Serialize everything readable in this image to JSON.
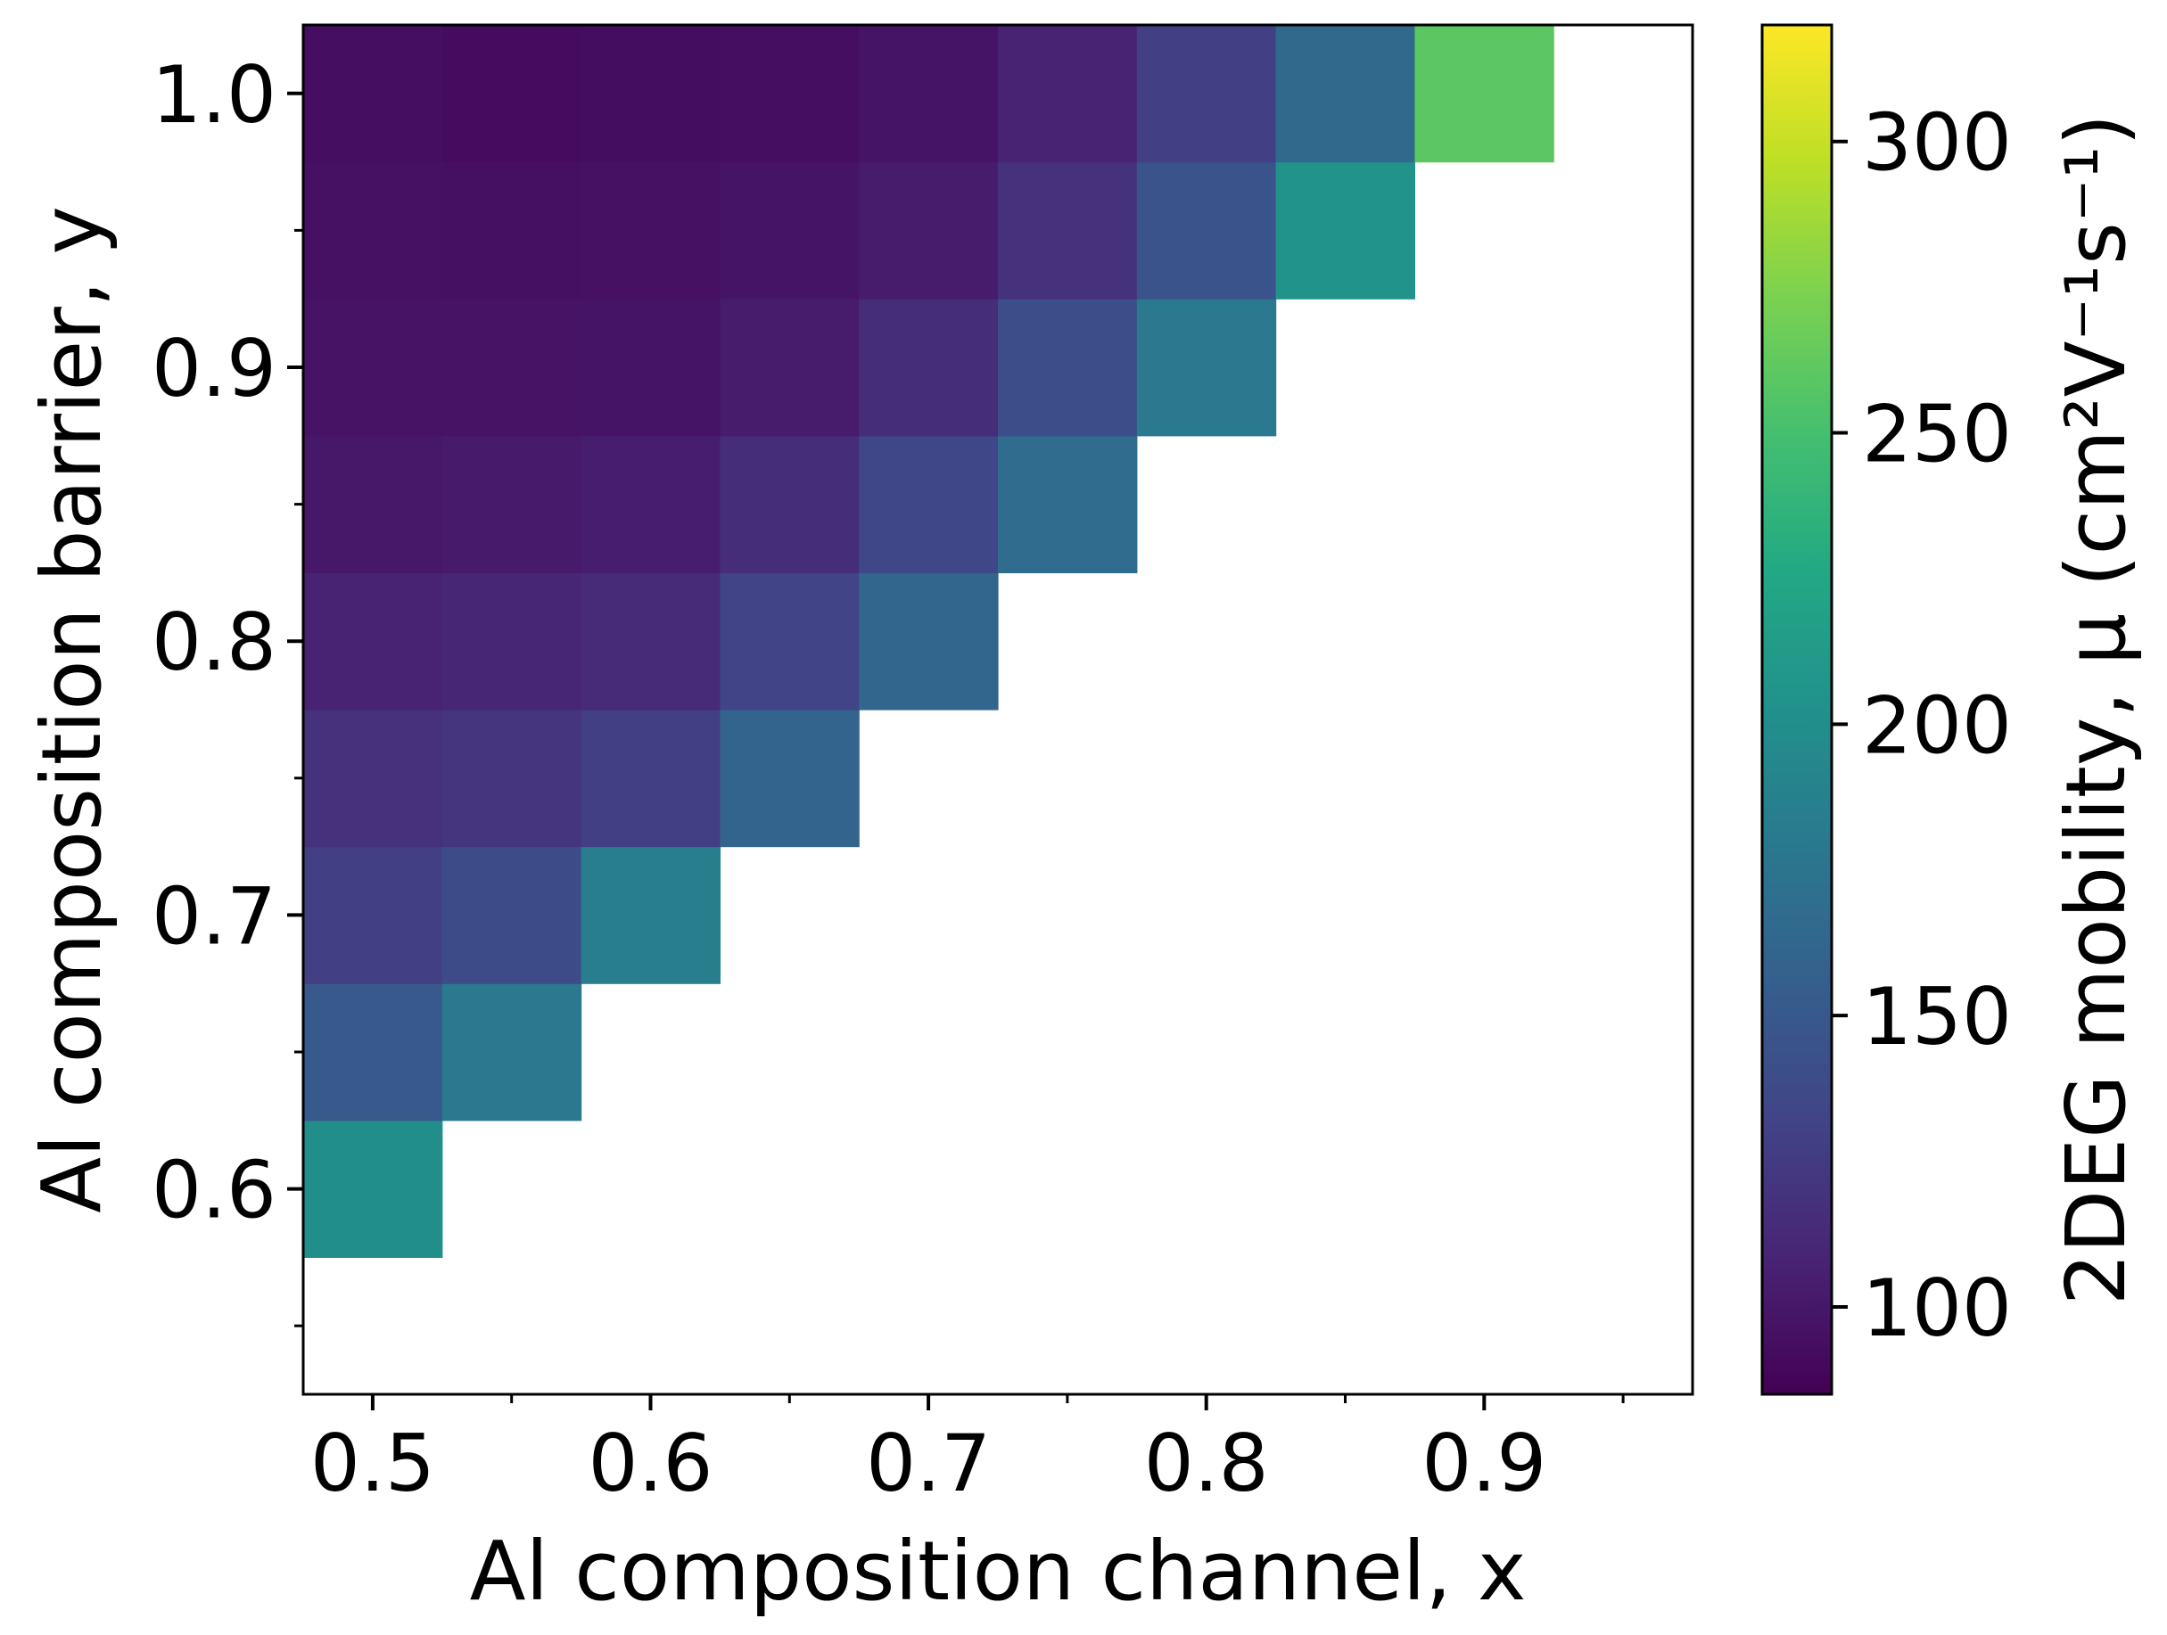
{
  "chart_data": {
    "type": "heatmap",
    "xlabel": "Al composition channel, x",
    "ylabel": "Al composition barrier, y",
    "x_values": [
      0.5,
      0.55,
      0.6,
      0.65,
      0.7,
      0.75,
      0.8,
      0.85,
      0.9,
      0.95
    ],
    "y_values": [
      0.55,
      0.6,
      0.65,
      0.7,
      0.75,
      0.8,
      0.85,
      0.9,
      0.95,
      1.0
    ],
    "xlim": [
      0.475,
      0.975
    ],
    "ylim": [
      0.525,
      1.025
    ],
    "x_major_ticks": [
      0.5,
      0.6,
      0.7,
      0.8,
      0.9
    ],
    "x_minor_ticks": [
      0.55,
      0.65,
      0.75,
      0.85,
      0.95
    ],
    "x_tick_labels": [
      "0.5",
      "0.6",
      "0.7",
      "0.8",
      "0.9"
    ],
    "y_major_ticks": [
      0.6,
      0.7,
      0.8,
      0.9,
      1.0
    ],
    "y_minor_ticks": [
      0.55,
      0.65,
      0.75,
      0.85,
      0.95
    ],
    "y_tick_labels": [
      "0.6",
      "0.7",
      "0.8",
      "0.9",
      "1.0"
    ],
    "z_note": "rows indexed by y (from y=0.55 upward), columns by x (from x=0.5); null = no data",
    "z": [
      [
        null,
        null,
        null,
        null,
        null,
        null,
        null,
        null,
        null,
        null
      ],
      [
        200,
        null,
        null,
        null,
        null,
        null,
        null,
        null,
        null,
        null
      ],
      [
        150,
        180,
        null,
        null,
        null,
        null,
        null,
        null,
        null,
        null
      ],
      [
        128,
        138,
        185,
        null,
        null,
        null,
        null,
        null,
        null,
        null
      ],
      [
        118,
        120,
        128,
        160,
        null,
        null,
        null,
        null,
        null,
        null
      ],
      [
        108,
        110,
        113,
        132,
        162,
        null,
        null,
        null,
        null,
        null
      ],
      [
        100,
        102,
        104,
        115,
        135,
        168,
        null,
        null,
        null,
        null
      ],
      [
        97,
        97,
        98,
        103,
        115,
        140,
        180,
        null,
        null,
        null
      ],
      [
        96,
        95,
        96,
        98,
        103,
        118,
        145,
        205,
        null,
        null
      ],
      [
        94,
        92,
        93,
        94,
        98,
        107,
        128,
        165,
        260,
        null
      ]
    ],
    "colorbar": {
      "label": "2DEG mobility, μ (cm²V⁻¹s⁻¹)",
      "colormap": "viridis",
      "range": [
        85,
        320
      ],
      "ticks": [
        100,
        150,
        200,
        250,
        300
      ],
      "tick_labels": [
        "100",
        "150",
        "200",
        "250",
        "300"
      ]
    }
  }
}
